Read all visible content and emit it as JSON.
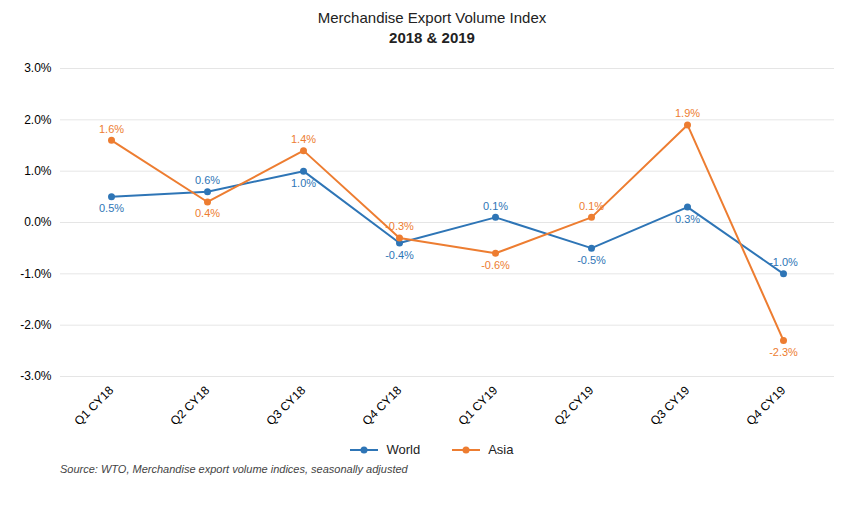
{
  "chart_data": {
    "type": "line",
    "title": "Merchandise Export Volume Index",
    "subtitle": "2018 & 2019",
    "categories": [
      "Q1 CY18",
      "Q2 CY18",
      "Q3 CY18",
      "Q4 CY18",
      "Q1 CY19",
      "Q2 CY19",
      "Q3 CY19",
      "Q4 CY19"
    ],
    "series": [
      {
        "name": "World",
        "color": "#2E75B6",
        "marker": "circle",
        "values": [
          0.5,
          0.6,
          1.0,
          -0.4,
          0.1,
          -0.5,
          0.3,
          -1.0
        ],
        "value_labels": [
          "0.5%",
          "0.6%",
          "1.0%",
          "-0.4%",
          "0.1%",
          "-0.5%",
          "0.3%",
          "-1.0%"
        ]
      },
      {
        "name": "Asia",
        "color": "#ED7D31",
        "marker": "circle",
        "values": [
          1.6,
          0.4,
          1.4,
          -0.3,
          -0.6,
          0.1,
          1.9,
          -2.3
        ],
        "value_labels": [
          "1.6%",
          "0.4%",
          "1.4%",
          "-0.3%",
          "-0.6%",
          "0.1%",
          "1.9%",
          "-2.3%"
        ]
      }
    ],
    "ylim": [
      -3.0,
      3.0
    ],
    "yticks": [
      {
        "value": -3.0,
        "label": "-3.0%"
      },
      {
        "value": -2.0,
        "label": "-2.0%"
      },
      {
        "value": -1.0,
        "label": "-1.0%"
      },
      {
        "value": 0.0,
        "label": "0.0%"
      },
      {
        "value": 1.0,
        "label": "1.0%"
      },
      {
        "value": 2.0,
        "label": "2.0%"
      },
      {
        "value": 3.0,
        "label": "3.0%"
      }
    ],
    "grid": true,
    "legend": "bottom",
    "data_labels": true,
    "source": "Source: WTO, Merchandise export volume indices, seasonally adjusted"
  }
}
